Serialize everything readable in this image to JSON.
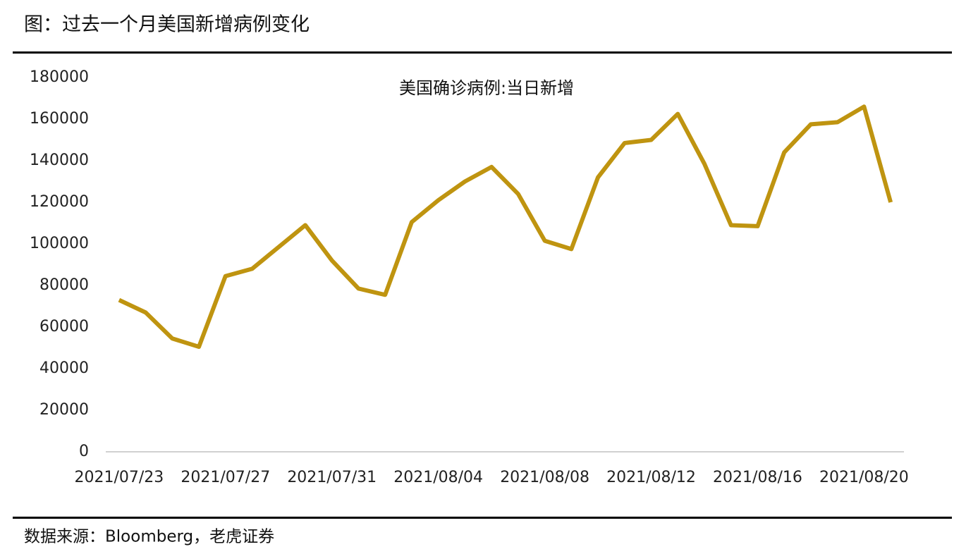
{
  "header": {
    "title": "图：过去一个月美国新增病例变化"
  },
  "chart_data": {
    "type": "line",
    "title": "美国确诊病例:当日新增",
    "categories": [
      "2021/07/23",
      null,
      null,
      null,
      "2021/07/27",
      null,
      null,
      null,
      "2021/07/31",
      null,
      null,
      null,
      "2021/08/04",
      null,
      null,
      null,
      "2021/08/08",
      null,
      null,
      null,
      "2021/08/12",
      null,
      null,
      null,
      "2021/08/16",
      null,
      null,
      null,
      "2021/08/20",
      null
    ],
    "series": [
      {
        "name": "美国确诊病例:当日新增",
        "color": "#bf9410",
        "values": [
          73000,
          67000,
          54500,
          50500,
          84500,
          88000,
          98500,
          109000,
          92000,
          78500,
          75500,
          110500,
          121000,
          130000,
          137000,
          124000,
          101500,
          97500,
          132000,
          148500,
          150000,
          162500,
          138500,
          109000,
          108500,
          144000,
          157500,
          158500,
          166000,
          120000
        ]
      }
    ],
    "ylim": [
      0,
      180000
    ],
    "yticks": [
      0,
      20000,
      40000,
      60000,
      80000,
      100000,
      120000,
      140000,
      160000,
      180000
    ]
  },
  "footer": {
    "source": "数据来源：Bloomberg，老虎证券"
  }
}
